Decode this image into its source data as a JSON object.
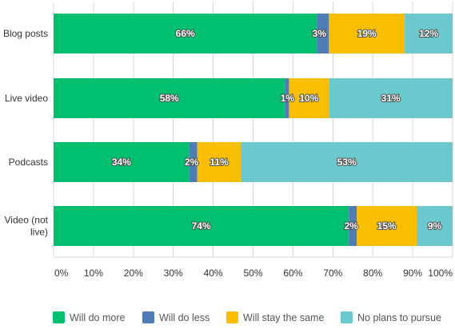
{
  "chart_data": {
    "type": "bar",
    "orientation": "horizontal",
    "stacked": true,
    "categories": [
      "Blog posts",
      "Live video",
      "Podcasts",
      "Video (not live)"
    ],
    "categories_display": [
      [
        "Blog posts"
      ],
      [
        "Live video"
      ],
      [
        "Podcasts"
      ],
      [
        "Video (not",
        "live)"
      ]
    ],
    "series": [
      {
        "name": "Will do more",
        "values": [
          66,
          58,
          34,
          74
        ],
        "color": "#00bf6f"
      },
      {
        "name": "Will do less",
        "values": [
          3,
          1,
          2,
          2
        ],
        "color": "#507cb6"
      },
      {
        "name": "Will stay the same",
        "values": [
          19,
          10,
          11,
          15
        ],
        "color": "#f9be00"
      },
      {
        "name": "No plans to pursue",
        "values": [
          12,
          31,
          53,
          9
        ],
        "color": "#6bc8cd"
      }
    ],
    "xlim": [
      0,
      100
    ],
    "xticks": [
      "0%",
      "10%",
      "20%",
      "30%",
      "40%",
      "50%",
      "60%",
      "70%",
      "80%",
      "90%",
      "100%"
    ],
    "value_suffix": "%",
    "grid": "vertical",
    "legend_position": "bottom",
    "title": "",
    "xlabel": "",
    "ylabel": ""
  }
}
